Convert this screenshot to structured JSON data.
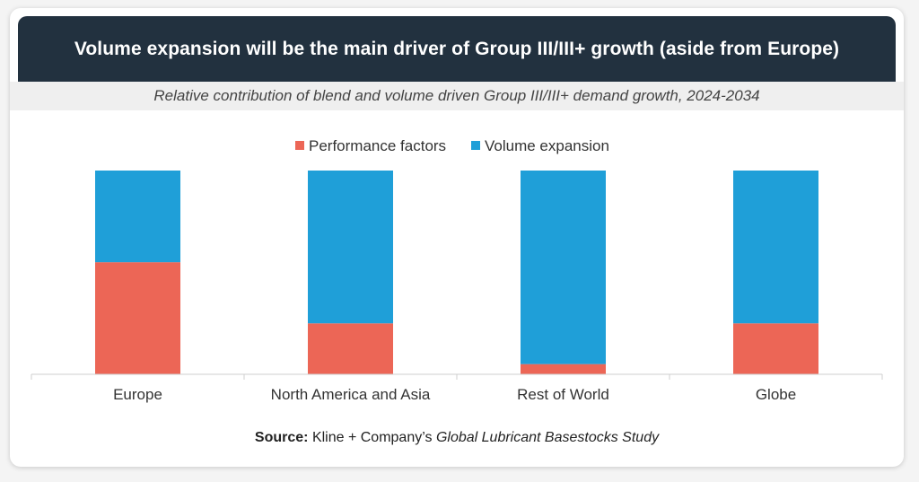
{
  "header": {
    "title": "Volume expansion will be the main driver of Group III/III+ growth (aside from Europe)",
    "subtitle": "Relative contribution of blend and volume driven Group III/III+ demand growth, 2024-2034"
  },
  "source": {
    "label": "Source:",
    "text": "Kline + Company’s",
    "italic": "Global Lubricant Basestocks Study"
  },
  "colors": {
    "performance": "#ec6656",
    "volume": "#1f9fd8"
  },
  "chart_data": {
    "type": "bar",
    "stacked": true,
    "normalized": true,
    "categories": [
      "Europe",
      "North America and Asia",
      "Rest of World",
      "Globe"
    ],
    "series": [
      {
        "name": "Performance factors",
        "values": [
          55,
          25,
          5,
          25
        ]
      },
      {
        "name": "Volume expansion",
        "values": [
          45,
          75,
          95,
          75
        ]
      }
    ],
    "ylim": [
      0,
      100
    ],
    "legend": "top-center",
    "grid": false
  }
}
